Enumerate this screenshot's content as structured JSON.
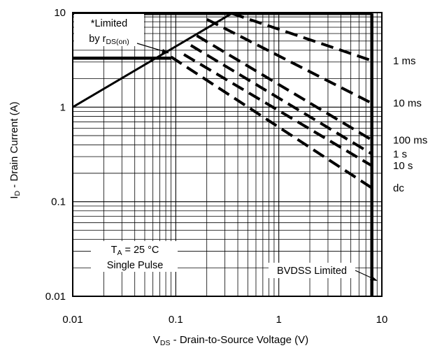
{
  "chart_data": {
    "type": "line",
    "xscale": "log",
    "yscale": "log",
    "xlim": [
      0.01,
      10
    ],
    "ylim": [
      0.01,
      10
    ],
    "grid": true,
    "xlabel": {
      "main": "V",
      "sub": "DS",
      "rest": " - Drain-to-Source Voltage (V)"
    },
    "ylabel": {
      "main": "I",
      "sub": "D",
      "rest": " - Drain Current (A)"
    },
    "xticks": [
      {
        "v": 0.01,
        "label": "0.01"
      },
      {
        "v": 0.1,
        "label": "0.1"
      },
      {
        "v": 1,
        "label": "1"
      },
      {
        "v": 10,
        "label": "10"
      }
    ],
    "yticks": [
      {
        "v": 0.01,
        "label": "0.01"
      },
      {
        "v": 0.1,
        "label": "0.1"
      },
      {
        "v": 1,
        "label": "1"
      },
      {
        "v": 10,
        "label": "10"
      }
    ],
    "limits": [
      {
        "name": "rds-limit",
        "style": "solid",
        "x": [
          0.01,
          0.35
        ],
        "y": [
          1.0,
          9.8
        ]
      },
      {
        "name": "current-limit-top",
        "style": "solid",
        "x": [
          0.01,
          8.0
        ],
        "y": [
          9.8,
          9.8
        ]
      },
      {
        "name": "current-limit-dc",
        "style": "solid",
        "x": [
          0.01,
          0.09
        ],
        "y": [
          3.3,
          3.3
        ]
      },
      {
        "name": "bvdss-limit",
        "style": "solid",
        "x": [
          8.0,
          8.0
        ],
        "y": [
          9.8,
          0.01
        ]
      }
    ],
    "series": [
      {
        "name": "1 ms",
        "style": "dashed",
        "x": [
          0.35,
          8.0
        ],
        "y": [
          9.8,
          3.1
        ]
      },
      {
        "name": "10 ms",
        "style": "dashed",
        "x": [
          0.2,
          8.0
        ],
        "y": [
          8.5,
          1.1
        ]
      },
      {
        "name": "100 ms",
        "style": "dashed",
        "x": [
          0.16,
          8.0
        ],
        "y": [
          5.7,
          0.45
        ]
      },
      {
        "name": "1 s",
        "style": "dashed",
        "x": [
          0.14,
          8.0
        ],
        "y": [
          4.5,
          0.32
        ]
      },
      {
        "name": "10 s",
        "style": "dashed",
        "x": [
          0.12,
          8.0
        ],
        "y": [
          3.6,
          0.24
        ]
      },
      {
        "name": "dc",
        "style": "dashed",
        "x": [
          0.09,
          8.0
        ],
        "y": [
          3.4,
          0.14
        ]
      }
    ],
    "series_label_y": [
      3.1,
      1.1,
      0.45,
      0.32,
      0.24,
      0.14
    ],
    "annotations": {
      "limited_line1": "*Limited",
      "limited_line2_main": "by r",
      "limited_line2_sub": "DS(on)",
      "ta_main": "T",
      "ta_sub": "A",
      "ta_rest": " = 25 °C",
      "single_pulse": "Single Pulse",
      "bvdss": "BVDSS Limited"
    }
  }
}
